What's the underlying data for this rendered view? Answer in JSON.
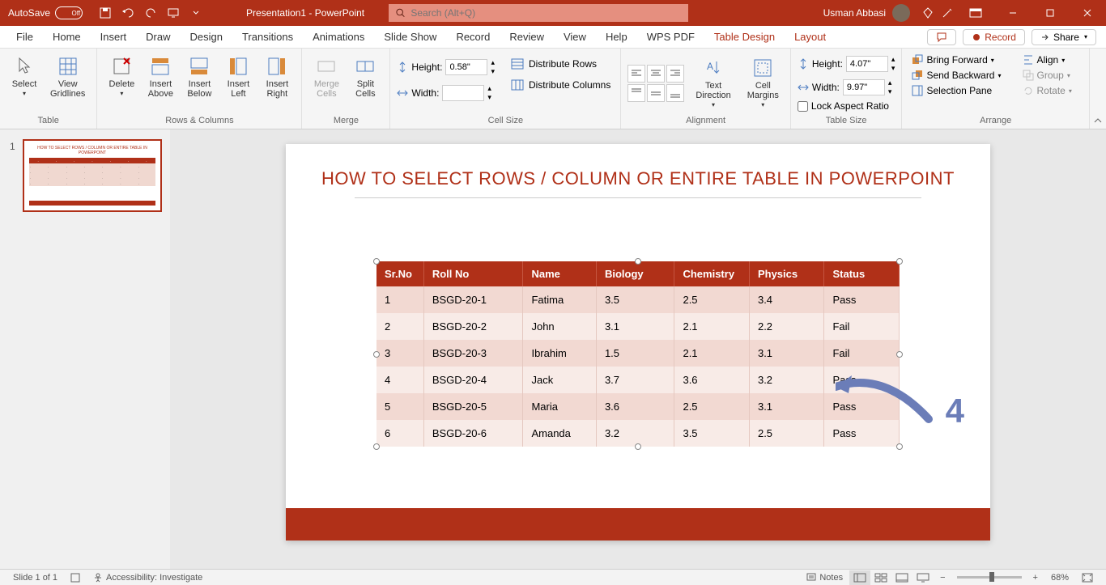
{
  "titlebar": {
    "autosave_label": "AutoSave",
    "autosave_state": "Off",
    "doc_title": "Presentation1 - PowerPoint",
    "search_placeholder": "Search (Alt+Q)",
    "user_name": "Usman Abbasi"
  },
  "tabs": {
    "items": [
      "File",
      "Home",
      "Insert",
      "Draw",
      "Design",
      "Transitions",
      "Animations",
      "Slide Show",
      "Record",
      "Review",
      "View",
      "Help",
      "WPS PDF",
      "Table Design",
      "Layout"
    ],
    "active": "Layout",
    "contextual": [
      "Table Design",
      "Layout"
    ],
    "comments_label": "",
    "record_label": "Record",
    "share_label": "Share"
  },
  "ribbon": {
    "groups": {
      "table": {
        "label": "Table",
        "select": "Select",
        "gridlines": "View\nGridlines"
      },
      "rowscols": {
        "label": "Rows & Columns",
        "delete": "Delete",
        "above": "Insert\nAbove",
        "below": "Insert\nBelow",
        "left": "Insert\nLeft",
        "right": "Insert\nRight"
      },
      "merge": {
        "label": "Merge",
        "merge": "Merge\nCells",
        "split": "Split\nCells"
      },
      "cellsize": {
        "label": "Cell Size",
        "height_label": "Height:",
        "height_value": "0.58\"",
        "width_label": "Width:",
        "width_value": "",
        "dist_rows": "Distribute Rows",
        "dist_cols": "Distribute Columns"
      },
      "alignment": {
        "label": "Alignment",
        "text_dir": "Text\nDirection",
        "margins": "Cell\nMargins"
      },
      "tablesize": {
        "label": "Table Size",
        "height_label": "Height:",
        "height_value": "4.07\"",
        "width_label": "Width:",
        "width_value": "9.97\"",
        "lock": "Lock Aspect Ratio"
      },
      "arrange": {
        "label": "Arrange",
        "forward": "Bring Forward",
        "backward": "Send Backward",
        "pane": "Selection Pane",
        "align": "Align",
        "group": "Group",
        "rotate": "Rotate"
      }
    }
  },
  "thumb": {
    "number": "1"
  },
  "slide": {
    "title": "HOW TO SELECT ROWS / COLUMN OR ENTIRE TABLE IN POWERPOINT",
    "table": {
      "columns": [
        "Sr.No",
        "Roll No",
        "Name",
        "Biology",
        "Chemistry",
        "Physics",
        "Status"
      ],
      "col_widths": [
        "58px",
        "122px",
        "90px",
        "96px",
        "92px",
        "92px",
        "92px"
      ],
      "header_bg": "#b03018",
      "header_color": "#ffffff",
      "row_odd_bg": "#f2d9d2",
      "row_even_bg": "#f8ebe7",
      "rows": [
        [
          "1",
          "BSGD-20-1",
          "Fatima",
          "3.5",
          "2.5",
          "3.4",
          "Pass"
        ],
        [
          "2",
          "BSGD-20-2",
          "John",
          "3.1",
          "2.1",
          "2.2",
          "Fail"
        ],
        [
          "3",
          "BSGD-20-3",
          "Ibrahim",
          "1.5",
          "2.1",
          "3.1",
          "Fail"
        ],
        [
          "4",
          "BSGD-20-4",
          "Jack",
          "3.7",
          "3.6",
          "3.2",
          "Pass"
        ],
        [
          "5",
          "BSGD-20-5",
          "Maria",
          "3.6",
          "2.5",
          "3.1",
          "Pass"
        ],
        [
          "6",
          "BSGD-20-6",
          "Amanda",
          "3.2",
          "3.5",
          "2.5",
          "Pass"
        ]
      ]
    },
    "annotation_number": "4",
    "annotation_color": "#6b7db8"
  },
  "statusbar": {
    "slide_info": "Slide 1 of 1",
    "accessibility": "Accessibility: Investigate",
    "notes": "Notes",
    "zoom": "68%"
  }
}
